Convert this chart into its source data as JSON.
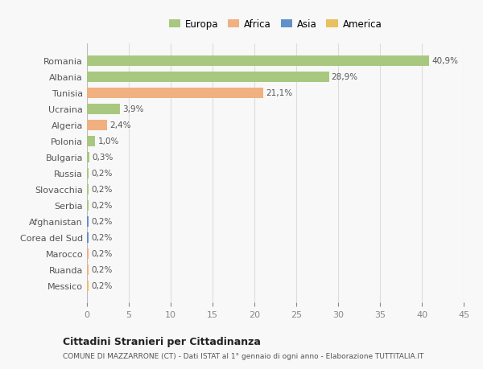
{
  "countries": [
    "Romania",
    "Albania",
    "Tunisia",
    "Ucraina",
    "Algeria",
    "Polonia",
    "Bulgaria",
    "Russia",
    "Slovacchia",
    "Serbia",
    "Afghanistan",
    "Corea del Sud",
    "Marocco",
    "Ruanda",
    "Messico"
  ],
  "values": [
    40.9,
    28.9,
    21.1,
    3.9,
    2.4,
    1.0,
    0.3,
    0.2,
    0.2,
    0.2,
    0.2,
    0.2,
    0.2,
    0.2,
    0.2
  ],
  "labels": [
    "40,9%",
    "28,9%",
    "21,1%",
    "3,9%",
    "2,4%",
    "1,0%",
    "0,3%",
    "0,2%",
    "0,2%",
    "0,2%",
    "0,2%",
    "0,2%",
    "0,2%",
    "0,2%",
    "0,2%"
  ],
  "colors": [
    "#a8c880",
    "#a8c880",
    "#f0b080",
    "#a8c880",
    "#f0b080",
    "#a8c880",
    "#a8c880",
    "#a8c880",
    "#a8c880",
    "#a8c880",
    "#6090c8",
    "#6090c8",
    "#f0b080",
    "#f0b080",
    "#e8c060"
  ],
  "legend_labels": [
    "Europa",
    "Africa",
    "Asia",
    "America"
  ],
  "legend_colors": [
    "#a8c880",
    "#f0b080",
    "#6090c8",
    "#e8c060"
  ],
  "title": "Cittadini Stranieri per Cittadinanza",
  "subtitle": "COMUNE DI MAZZARRONE (CT) - Dati ISTAT al 1° gennaio di ogni anno - Elaborazione TUTTITALIA.IT",
  "xlim": [
    0,
    45
  ],
  "xticks": [
    0,
    5,
    10,
    15,
    20,
    25,
    30,
    35,
    40,
    45
  ],
  "background_color": "#f8f8f8",
  "bar_height": 0.65,
  "grid_color": "#dddddd"
}
